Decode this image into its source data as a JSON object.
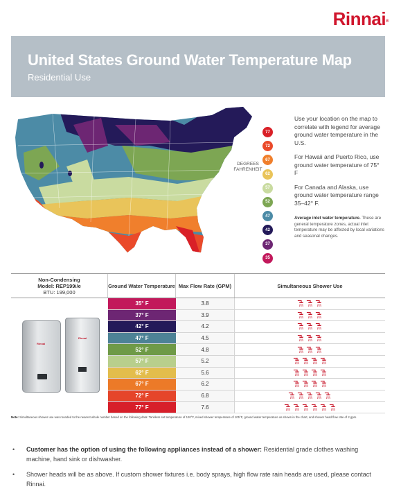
{
  "brand": {
    "name": "Rinnai",
    "mark": "®"
  },
  "header": {
    "title": "United States Ground Water Temperature Map",
    "subtitle": "Residential Use"
  },
  "legend": {
    "caption_line1": "DEGREES",
    "caption_line2": "FAHRENHEIT",
    "stops": [
      {
        "label": "77",
        "color": "#d92027"
      },
      {
        "label": "72",
        "color": "#ea4a2a"
      },
      {
        "label": "67",
        "color": "#f07f2c"
      },
      {
        "label": "62",
        "color": "#e9c45a"
      },
      {
        "label": "57",
        "color": "#c9dba0"
      },
      {
        "label": "52",
        "color": "#7da653"
      },
      {
        "label": "47",
        "color": "#4c8ba6"
      },
      {
        "label": "42",
        "color": "#241a59"
      },
      {
        "label": "37",
        "color": "#6d2673"
      },
      {
        "label": "35",
        "color": "#c2185b"
      }
    ]
  },
  "sidebar": {
    "p1": "Use your location on the map to correlate with legend for average ground water temperature in the U.S.",
    "p2": "For Hawaii and Puerto Rico, use ground water temperature of 75° F",
    "p3": "For Canada and Alaska, use ground water temperature range 35–42° F.",
    "note_bold": "Average inlet water temperature.",
    "note_text": " These are general temperature zones, actual inlet temperature may be affected by local variations and seasonal changes."
  },
  "table": {
    "model_header_line1": "Non-Condensing",
    "model_header_line2": "Model: REP199i/e",
    "model_header_line3": "BTU: 199,000",
    "col_temp": "Ground Water Temperature",
    "col_flow": "Max Flow Rate (GPM)",
    "col_shower": "Simultaneous Shower Use",
    "product_brand": "Rinnai",
    "rows": [
      {
        "temp": "35° F",
        "gpm": "3.8",
        "showers": 3,
        "color": "#c2185b"
      },
      {
        "temp": "37° F",
        "gpm": "3.9",
        "showers": 3,
        "color": "#6d2673"
      },
      {
        "temp": "42° F",
        "gpm": "4.2",
        "showers": 3,
        "color": "#241a59"
      },
      {
        "temp": "47° F",
        "gpm": "4.5",
        "showers": 3,
        "color": "#4d8296"
      },
      {
        "temp": "52° F",
        "gpm": "4.8",
        "showers": 3,
        "color": "#6f9a47"
      },
      {
        "temp": "57° F",
        "gpm": "5.2",
        "showers": 4,
        "color": "#b8cf8c"
      },
      {
        "temp": "62° F",
        "gpm": "5.6",
        "showers": 4,
        "color": "#e3bd4c"
      },
      {
        "temp": "67° F",
        "gpm": "6.2",
        "showers": 4,
        "color": "#ec7a28"
      },
      {
        "temp": "72° F",
        "gpm": "6.8",
        "showers": 5,
        "color": "#e5452a"
      },
      {
        "temp": "77° F",
        "gpm": "7.6",
        "showers": 6,
        "color": "#d71f2a"
      }
    ]
  },
  "footnote": {
    "label": "Note:",
    "text": " Simultaneous shower use was rounded to the nearest whole number based on the following data: Tankless set temperature of 120°F, mixed shower temperature of 105°F, ground water temperature as shown in the chart, and shower head flow rate of 2 gpm."
  },
  "bullets": {
    "b1_bold": "Customer has the option of using the following appliances instead of a shower:",
    "b1_text": " Residential grade clothes washing machine, hand sink or dishwasher.",
    "b2_text": "Shower heads will be as above. If custom shower fixtures i.e. body sprays, high flow rate rain heads are used, please contact Rinnai."
  }
}
